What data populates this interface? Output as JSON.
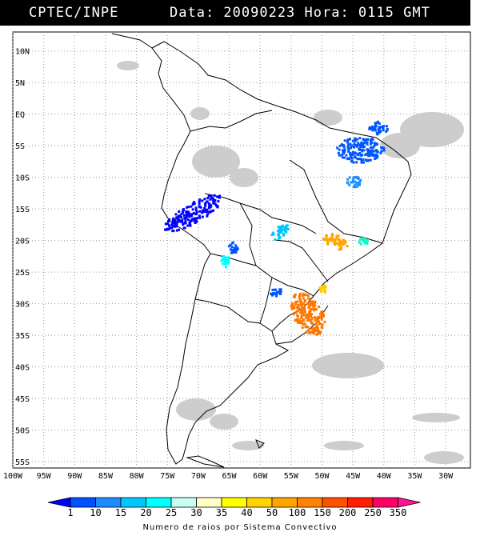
{
  "header": {
    "source": "CPTEC/INPE",
    "info": "Data: 20090223 Hora: 0115 GMT"
  },
  "map": {
    "lon_labels": [
      "100W",
      "95W",
      "90W",
      "85W",
      "80W",
      "75W",
      "70W",
      "65W",
      "60W",
      "55W",
      "50W",
      "45W",
      "40W",
      "35W",
      "30W"
    ],
    "lat_labels": [
      "10N",
      "5N",
      "EQ",
      "5S",
      "10S",
      "15S",
      "20S",
      "25S",
      "30S",
      "35S",
      "40S",
      "45S",
      "50S",
      "55S"
    ],
    "lon_range": [
      -100,
      -26
    ],
    "lat_range": [
      -56,
      13
    ],
    "grid_step": 5,
    "gridlines": true
  },
  "clusters": [
    {
      "name": "peru-bolivia",
      "lon": -71,
      "lat": -15.5,
      "color": "#0000ff",
      "class": "1"
    },
    {
      "name": "northeast-brazil-north",
      "lon": -44,
      "lat": -5.5,
      "color": "#0055ff",
      "class": "10"
    },
    {
      "name": "northeast-brazil-coast",
      "lon": -41,
      "lat": -2,
      "color": "#0055ff",
      "class": "10"
    },
    {
      "name": "bahia",
      "lon": -45,
      "lat": -10.5,
      "color": "#1e90ff",
      "class": "15"
    },
    {
      "name": "mato-grosso-sul",
      "lon": -57,
      "lat": -18.5,
      "color": "#00c8ff",
      "class": "20"
    },
    {
      "name": "minas-gerais",
      "lon": -48,
      "lat": -20,
      "color": "#ffa500",
      "class": "100"
    },
    {
      "name": "espirito-santo",
      "lon": -43.5,
      "lat": -20,
      "color": "#00ffc8",
      "class": "25"
    },
    {
      "name": "paraguay-north",
      "lon": -64.5,
      "lat": -21,
      "color": "#0055ff",
      "class": "10"
    },
    {
      "name": "argentina-north",
      "lon": -66,
      "lat": -23,
      "color": "#00ffff",
      "class": "25"
    },
    {
      "name": "misiones",
      "lon": -57.5,
      "lat": -28,
      "color": "#0055ff",
      "class": "10"
    },
    {
      "name": "sao-paulo",
      "lon": -50,
      "lat": -27.5,
      "color": "#ffcc00",
      "class": "50"
    },
    {
      "name": "rio-grande-sul",
      "lon": -52.5,
      "lat": -31.5,
      "color": "#ff7700",
      "class": "200"
    }
  ],
  "colorbar": {
    "title": "Numero de raios por Sistema Convectivo",
    "ticks": [
      "1",
      "10",
      "15",
      "20",
      "25",
      "30",
      "35",
      "40",
      "50",
      "100",
      "150",
      "200",
      "250",
      "350"
    ],
    "colors": [
      "#0000ff",
      "#0050ff",
      "#1e8cff",
      "#00c8ff",
      "#00ffff",
      "#c8fff0",
      "#ffffc8",
      "#ffff00",
      "#ffd200",
      "#ffa500",
      "#ff8200",
      "#ff5000",
      "#ff1e00",
      "#ff0064",
      "#ff1493"
    ]
  }
}
